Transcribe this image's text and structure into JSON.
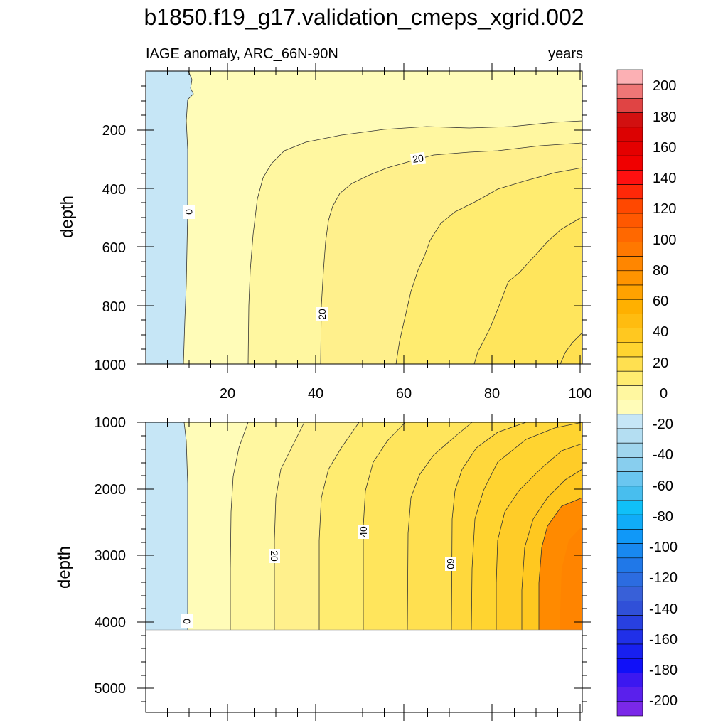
{
  "title": "b1850.f19_g17.validation_cmeps_xgrid.002",
  "chart_data": [
    {
      "type": "contour",
      "panel": "upper",
      "left_label": "IAGE anomaly, ARC_66N-90N",
      "right_label": "years",
      "ylabel": "depth",
      "y_ticks": [
        "200",
        "400",
        "600",
        "800",
        "1000"
      ],
      "x_ticks": [
        "20",
        "40",
        "60",
        "80",
        "100"
      ],
      "xlim": [
        0,
        101
      ],
      "ylim": [
        1000,
        40
      ],
      "contour_labels": [
        "0",
        "20",
        "20"
      ],
      "contour_levels_shown": [
        -5,
        0,
        5,
        10,
        15,
        20,
        25,
        30,
        35
      ]
    },
    {
      "type": "contour",
      "panel": "lower",
      "ylabel": "depth",
      "y_ticks": [
        "1000",
        "2000",
        "3000",
        "4000",
        "5000"
      ],
      "xlim": [
        0,
        101
      ],
      "ylim": [
        5400,
        1000
      ],
      "ocean_floor_depth": 4120,
      "contour_labels": [
        "0",
        "20",
        "40",
        "60"
      ],
      "contour_levels_shown": [
        -5,
        0,
        5,
        10,
        15,
        20,
        25,
        30,
        35,
        40,
        45,
        50,
        55,
        60,
        65,
        70
      ]
    }
  ],
  "colorbar": {
    "labels": [
      "200",
      "180",
      "160",
      "140",
      "120",
      "100",
      "80",
      "60",
      "40",
      "20",
      "0",
      "-20",
      "-40",
      "-60",
      "-80",
      "-100",
      "-120",
      "-140",
      "-160",
      "-180",
      "-200"
    ],
    "colors": [
      "#fcb0b4",
      "#ef7676",
      "#e04444",
      "#d21010",
      "#dc0202",
      "#e40000",
      "#f00000",
      "#ff1010",
      "#ff2808",
      "#ff4800",
      "#ff5800",
      "#ff6800",
      "#ff7800",
      "#ff8600",
      "#ff9400",
      "#ffa200",
      "#ffb000",
      "#ffbc10",
      "#ffc820",
      "#ffd430",
      "#ffe050",
      "#ffec70",
      "#fff7a0",
      "#fffcb8",
      "#c6e6f6",
      "#b4def2",
      "#a0d6ee",
      "#88ceee",
      "#6ac6f0",
      "#48beee",
      "#10c0f8",
      "#10acf8",
      "#1098f8",
      "#1888f0",
      "#2078e8",
      "#2c6ce0",
      "#3860d8",
      "#3050d8",
      "#2840e0",
      "#2030e8",
      "#1820f0",
      "#1010f8",
      "#3c18f0",
      "#5a20ec",
      "#7a28e8"
    ]
  }
}
